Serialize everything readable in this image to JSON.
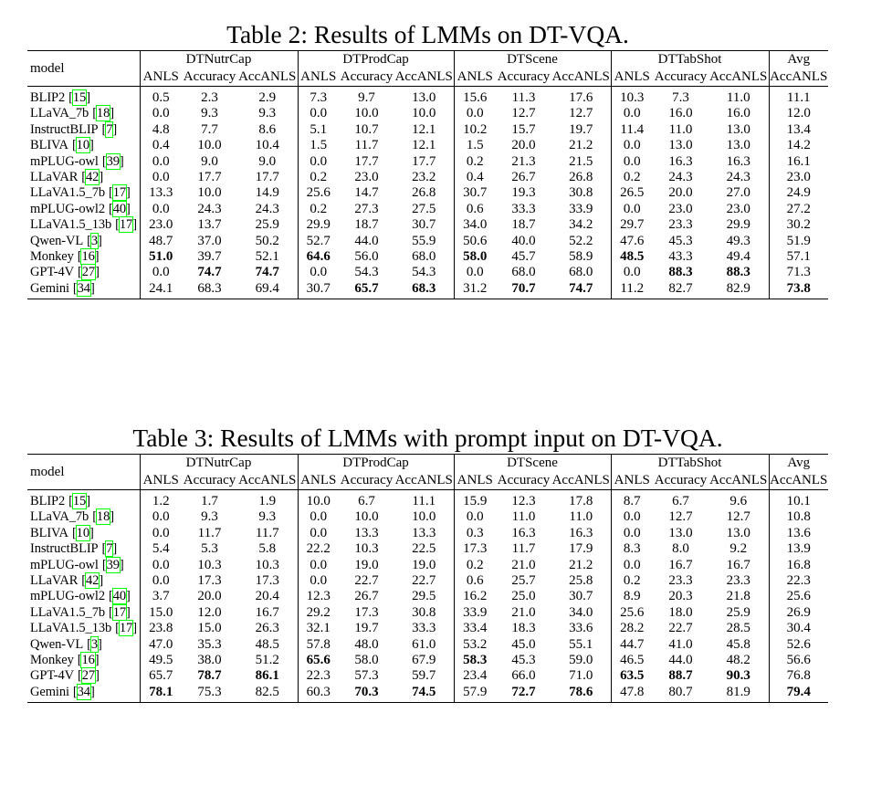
{
  "tables": [
    {
      "caption": "Table 2: Results of LMMs on DT-VQA.",
      "header": {
        "model_label": "model",
        "groups": [
          {
            "label": "DTNutrCap",
            "metrics": [
              "ANLS",
              "Accuracy",
              "AccANLS"
            ]
          },
          {
            "label": "DTProdCap",
            "metrics": [
              "ANLS",
              "Accuracy",
              "AccANLS"
            ]
          },
          {
            "label": "DTScene",
            "metrics": [
              "ANLS",
              "Accuracy",
              "AccANLS"
            ]
          },
          {
            "label": "DTTabShot",
            "metrics": [
              "ANLS",
              "Accuracy",
              "AccANLS"
            ]
          },
          {
            "label": "Avg",
            "metrics": [
              "AccANLS"
            ]
          }
        ]
      },
      "rows": [
        {
          "model": "BLIP2",
          "cite": "15",
          "values": [
            "0.5",
            "2.3",
            "2.9",
            "7.3",
            "9.7",
            "13.0",
            "15.6",
            "11.3",
            "17.6",
            "10.3",
            "7.3",
            "11.0",
            "11.1"
          ]
        },
        {
          "model": "LLaVA_7b",
          "cite": "18",
          "values": [
            "0.0",
            "9.3",
            "9.3",
            "0.0",
            "10.0",
            "10.0",
            "0.0",
            "12.7",
            "12.7",
            "0.0",
            "16.0",
            "16.0",
            "12.0"
          ]
        },
        {
          "model": "InstructBLIP",
          "cite": "7",
          "values": [
            "4.8",
            "7.7",
            "8.6",
            "5.1",
            "10.7",
            "12.1",
            "10.2",
            "15.7",
            "19.7",
            "11.4",
            "11.0",
            "13.0",
            "13.4"
          ]
        },
        {
          "model": "BLIVA",
          "cite": "10",
          "values": [
            "0.4",
            "10.0",
            "10.4",
            "1.5",
            "11.7",
            "12.1",
            "1.5",
            "20.0",
            "21.2",
            "0.0",
            "13.0",
            "13.0",
            "14.2"
          ]
        },
        {
          "model": "mPLUG-owl",
          "cite": "39",
          "values": [
            "0.0",
            "9.0",
            "9.0",
            "0.0",
            "17.7",
            "17.7",
            "0.2",
            "21.3",
            "21.5",
            "0.0",
            "16.3",
            "16.3",
            "16.1"
          ]
        },
        {
          "model": "LLaVAR",
          "cite": "42",
          "values": [
            "0.0",
            "17.7",
            "17.7",
            "0.2",
            "23.0",
            "23.2",
            "0.4",
            "26.7",
            "26.8",
            "0.2",
            "24.3",
            "24.3",
            "23.0"
          ]
        },
        {
          "model": "LLaVA1.5_7b",
          "cite": "17",
          "values": [
            "13.3",
            "10.0",
            "14.9",
            "25.6",
            "14.7",
            "26.8",
            "30.7",
            "19.3",
            "30.8",
            "26.5",
            "20.0",
            "27.0",
            "24.9"
          ]
        },
        {
          "model": "mPLUG-owl2",
          "cite": "40",
          "values": [
            "0.0",
            "24.3",
            "24.3",
            "0.2",
            "27.3",
            "27.5",
            "0.6",
            "33.3",
            "33.9",
            "0.0",
            "23.0",
            "23.0",
            "27.2"
          ]
        },
        {
          "model": "LLaVA1.5_13b",
          "cite": "17",
          "values": [
            "23.0",
            "13.7",
            "25.9",
            "29.9",
            "18.7",
            "30.7",
            "34.0",
            "18.7",
            "34.2",
            "29.7",
            "23.3",
            "29.9",
            "30.2"
          ]
        },
        {
          "model": "Qwen-VL",
          "cite": "3",
          "values": [
            "48.7",
            "37.0",
            "50.2",
            "52.7",
            "44.0",
            "55.9",
            "50.6",
            "40.0",
            "52.2",
            "47.6",
            "45.3",
            "49.3",
            "51.9"
          ]
        },
        {
          "model": "Monkey",
          "cite": "16",
          "values": [
            "51.0",
            "39.7",
            "52.1",
            "64.6",
            "56.0",
            "68.0",
            "58.0",
            "45.7",
            "58.9",
            "48.5",
            "43.3",
            "49.4",
            "57.1"
          ],
          "bold": [
            0,
            3,
            6,
            9
          ]
        },
        {
          "model": "GPT-4V",
          "cite": "27",
          "values": [
            "0.0",
            "74.7",
            "74.7",
            "0.0",
            "54.3",
            "54.3",
            "0.0",
            "68.0",
            "68.0",
            "0.0",
            "88.3",
            "88.3",
            "71.3"
          ],
          "bold": [
            1,
            2,
            10,
            11
          ]
        },
        {
          "model": "Gemini",
          "cite": "34",
          "values": [
            "24.1",
            "68.3",
            "69.4",
            "30.7",
            "65.7",
            "68.3",
            "31.2",
            "70.7",
            "74.7",
            "11.2",
            "82.7",
            "82.9",
            "73.8"
          ],
          "bold": [
            4,
            5,
            7,
            8,
            12
          ]
        }
      ]
    },
    {
      "caption": "Table 3: Results of LMMs with prompt input on DT-VQA.",
      "header": {
        "model_label": "model",
        "groups": [
          {
            "label": "DTNutrCap",
            "metrics": [
              "ANLS",
              "Accuracy",
              "AccANLS"
            ]
          },
          {
            "label": "DTProdCap",
            "metrics": [
              "ANLS",
              "Accuracy",
              "AccANLS"
            ]
          },
          {
            "label": "DTScene",
            "metrics": [
              "ANLS",
              "Accuracy",
              "AccANLS"
            ]
          },
          {
            "label": "DTTabShot",
            "metrics": [
              "ANLS",
              "Accuracy",
              "AccANLS"
            ]
          },
          {
            "label": "Avg",
            "metrics": [
              "AccANLS"
            ]
          }
        ]
      },
      "rows": [
        {
          "model": "BLIP2",
          "cite": "15",
          "values": [
            "1.2",
            "1.7",
            "1.9",
            "10.0",
            "6.7",
            "11.1",
            "15.9",
            "12.3",
            "17.8",
            "8.7",
            "6.7",
            "9.6",
            "10.1"
          ]
        },
        {
          "model": "LLaVA_7b",
          "cite": "18",
          "values": [
            "0.0",
            "9.3",
            "9.3",
            "0.0",
            "10.0",
            "10.0",
            "0.0",
            "11.0",
            "11.0",
            "0.0",
            "12.7",
            "12.7",
            "10.8"
          ]
        },
        {
          "model": "BLIVA",
          "cite": "10",
          "values": [
            "0.0",
            "11.7",
            "11.7",
            "0.0",
            "13.3",
            "13.3",
            "0.3",
            "16.3",
            "16.3",
            "0.0",
            "13.0",
            "13.0",
            "13.6"
          ]
        },
        {
          "model": "InstructBLIP",
          "cite": "7",
          "values": [
            "5.4",
            "5.3",
            "5.8",
            "22.2",
            "10.3",
            "22.5",
            "17.3",
            "11.7",
            "17.9",
            "8.3",
            "8.0",
            "9.2",
            "13.9"
          ]
        },
        {
          "model": "mPLUG-owl",
          "cite": "39",
          "values": [
            "0.0",
            "10.3",
            "10.3",
            "0.0",
            "19.0",
            "19.0",
            "0.2",
            "21.0",
            "21.2",
            "0.0",
            "16.7",
            "16.7",
            "16.8"
          ]
        },
        {
          "model": "LLaVAR",
          "cite": "42",
          "values": [
            "0.0",
            "17.3",
            "17.3",
            "0.0",
            "22.7",
            "22.7",
            "0.6",
            "25.7",
            "25.8",
            "0.2",
            "23.3",
            "23.3",
            "22.3"
          ]
        },
        {
          "model": "mPLUG-owl2",
          "cite": "40",
          "values": [
            "3.7",
            "20.0",
            "20.4",
            "12.3",
            "26.7",
            "29.5",
            "16.2",
            "25.0",
            "30.7",
            "8.9",
            "20.3",
            "21.8",
            "25.6"
          ]
        },
        {
          "model": "LLaVA1.5_7b",
          "cite": "17",
          "values": [
            "15.0",
            "12.0",
            "16.7",
            "29.2",
            "17.3",
            "30.8",
            "33.9",
            "21.0",
            "34.0",
            "25.6",
            "18.0",
            "25.9",
            "26.9"
          ]
        },
        {
          "model": "LLaVA1.5_13b",
          "cite": "17",
          "values": [
            "23.8",
            "15.0",
            "26.3",
            "32.1",
            "19.7",
            "33.3",
            "33.4",
            "18.3",
            "33.6",
            "28.2",
            "22.7",
            "28.5",
            "30.4"
          ]
        },
        {
          "model": "Qwen-VL",
          "cite": "3",
          "values": [
            "47.0",
            "35.3",
            "48.5",
            "57.8",
            "48.0",
            "61.0",
            "53.2",
            "45.0",
            "55.1",
            "44.7",
            "41.0",
            "45.8",
            "52.6"
          ]
        },
        {
          "model": "Monkey",
          "cite": "16",
          "values": [
            "49.5",
            "38.0",
            "51.2",
            "65.6",
            "58.0",
            "67.9",
            "58.3",
            "45.3",
            "59.0",
            "46.5",
            "44.0",
            "48.2",
            "56.6"
          ],
          "bold": [
            3,
            6
          ]
        },
        {
          "model": "GPT-4V",
          "cite": "27",
          "values": [
            "65.7",
            "78.7",
            "86.1",
            "22.3",
            "57.3",
            "59.7",
            "23.4",
            "66.0",
            "71.0",
            "63.5",
            "88.7",
            "90.3",
            "76.8"
          ],
          "bold": [
            1,
            2,
            9,
            10,
            11
          ]
        },
        {
          "model": "Gemini",
          "cite": "34",
          "values": [
            "78.1",
            "75.3",
            "82.5",
            "60.3",
            "70.3",
            "74.5",
            "57.9",
            "72.7",
            "78.6",
            "47.8",
            "80.7",
            "81.9",
            "79.4"
          ],
          "bold": [
            0,
            4,
            5,
            7,
            8,
            12
          ]
        }
      ]
    }
  ]
}
